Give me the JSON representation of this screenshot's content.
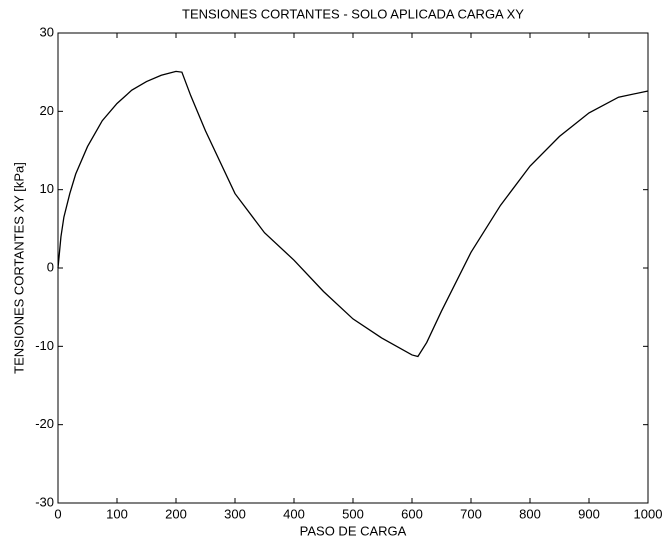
{
  "chart_data": {
    "type": "line",
    "title": "TENSIONES CORTANTES - SOLO APLICADA CARGA XY",
    "x_label": "PASO DE CARGA",
    "y_label": "TENSIONES CORTANTES XY [kPa]",
    "x": [
      0,
      5,
      10,
      20,
      30,
      50,
      75,
      100,
      125,
      150,
      175,
      200,
      210,
      225,
      250,
      300,
      350,
      400,
      450,
      500,
      550,
      600,
      610,
      625,
      650,
      700,
      750,
      800,
      850,
      900,
      950,
      1000
    ],
    "series": [
      {
        "name": "XY",
        "color": "#000000",
        "values": [
          0,
          4,
          6.5,
          9.5,
          12,
          15.5,
          18.8,
          21,
          22.7,
          23.8,
          24.6,
          25.1,
          25,
          22,
          17.5,
          9.5,
          4.5,
          1,
          -3,
          -6.5,
          -9,
          -11.1,
          -11.3,
          -9.5,
          -5.5,
          2,
          8,
          13,
          16.8,
          19.8,
          21.8,
          22.6
        ]
      }
    ],
    "xlim": [
      0,
      1000
    ],
    "xticks": [
      0,
      100,
      200,
      300,
      400,
      500,
      600,
      700,
      800,
      900,
      1000
    ],
    "ylim": [
      -30,
      30
    ],
    "yticks": [
      -30,
      -20,
      -10,
      0,
      10,
      20,
      30
    ],
    "grid": false
  }
}
